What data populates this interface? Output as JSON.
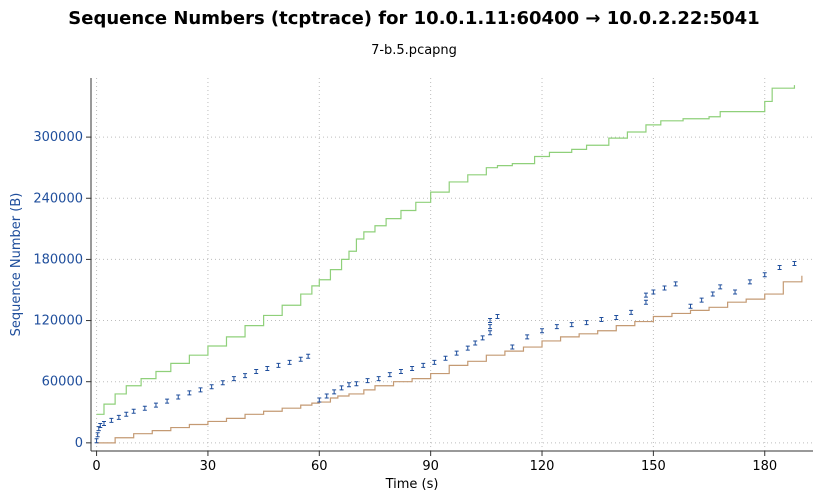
{
  "title": "Sequence Numbers (tcptrace) for 10.0.1.11:60400 → 10.0.2.22:5041",
  "subtitle": "7-b.5.pcapng",
  "colors": {
    "window": "#8fd07a",
    "ack": "#c49a73",
    "segments": "#1f4e9c",
    "grid": "#bdbdbd",
    "axis_text": "#1f4e9c"
  },
  "chart_data": {
    "type": "line",
    "title": "Sequence Numbers (tcptrace) for 10.0.1.11:60400 → 10.0.2.22:5041",
    "xlabel": "Time (s)",
    "ylabel": "Sequence Number (B)",
    "xlim": [
      -1.5,
      193
    ],
    "ylim": [
      -8000,
      358000
    ],
    "xticks": [
      0,
      30,
      60,
      90,
      120,
      150,
      180
    ],
    "yticks": [
      0,
      60000,
      120000,
      180000,
      240000,
      300000
    ],
    "xtick_labels": [
      "0",
      "30",
      "60",
      "90",
      "120",
      "150",
      "180"
    ],
    "ytick_labels": [
      "0",
      "60000",
      "120000",
      "180000",
      "240000",
      "300000"
    ],
    "grid": true,
    "series": [
      {
        "style": "step",
        "color": "#8fd07a",
        "x": [
          0,
          2,
          5,
          8,
          12,
          16,
          20,
          25,
          30,
          35,
          40,
          45,
          50,
          55,
          58,
          60,
          63,
          66,
          68,
          70,
          72,
          75,
          78,
          82,
          86,
          90,
          95,
          100,
          105,
          108,
          112,
          118,
          122,
          128,
          132,
          138,
          143,
          148,
          152,
          158,
          165,
          168,
          180,
          182,
          188
        ],
        "y": [
          28000,
          38000,
          48000,
          56000,
          63000,
          70000,
          78000,
          86000,
          95000,
          104000,
          115000,
          125000,
          135000,
          146000,
          154000,
          160000,
          170000,
          180000,
          188000,
          200000,
          207000,
          213000,
          220000,
          228000,
          236000,
          246000,
          256000,
          263000,
          270000,
          272000,
          274000,
          281000,
          285000,
          288000,
          292000,
          299000,
          305000,
          312000,
          316000,
          318000,
          320000,
          325000,
          335000,
          348000,
          351000
        ]
      },
      {
        "style": "step",
        "color": "#c49a73",
        "x": [
          0,
          5,
          10,
          15,
          20,
          25,
          30,
          35,
          40,
          45,
          50,
          55,
          58,
          60,
          63,
          65,
          68,
          72,
          75,
          80,
          85,
          90,
          95,
          100,
          105,
          110,
          115,
          120,
          125,
          130,
          135,
          140,
          145,
          150,
          155,
          160,
          165,
          170,
          175,
          180,
          185,
          190
        ],
        "y": [
          0,
          5000,
          9000,
          12000,
          15000,
          18000,
          21000,
          24000,
          28000,
          31000,
          34000,
          37000,
          39000,
          40000,
          44000,
          46000,
          48000,
          52000,
          56000,
          60000,
          63000,
          68000,
          76000,
          80000,
          86000,
          90000,
          94000,
          100000,
          104000,
          107000,
          110000,
          115000,
          119000,
          124000,
          127000,
          130000,
          133000,
          138000,
          141000,
          146000,
          158000,
          164000
        ]
      },
      {
        "style": "markers",
        "color": "#1f4e9c",
        "x": [
          0,
          0.3,
          0.6,
          1,
          2,
          4,
          6,
          8,
          10,
          13,
          16,
          19,
          22,
          25,
          28,
          31,
          34,
          37,
          40,
          43,
          46,
          49,
          52,
          55,
          57,
          60,
          62,
          64,
          66,
          68,
          70,
          73,
          76,
          79,
          82,
          85,
          88,
          91,
          94,
          97,
          100,
          102,
          104,
          106,
          106,
          106,
          108,
          112,
          116,
          120,
          124,
          128,
          132,
          136,
          140,
          144,
          148,
          148,
          150,
          153,
          156,
          160,
          163,
          166,
          168,
          172,
          176,
          180,
          184,
          188
        ],
        "y": [
          2000,
          8000,
          14000,
          17000,
          19000,
          22000,
          25000,
          28000,
          31000,
          34000,
          37000,
          41000,
          45000,
          49000,
          52000,
          55000,
          59000,
          63000,
          66000,
          70000,
          73000,
          76000,
          79000,
          82000,
          85000,
          42000,
          46000,
          50000,
          54000,
          57000,
          58000,
          61000,
          63000,
          67000,
          70000,
          73000,
          76000,
          79000,
          83000,
          88000,
          93000,
          98000,
          103000,
          108000,
          114000,
          120000,
          124000,
          94000,
          104000,
          110000,
          114000,
          116000,
          118000,
          121000,
          123000,
          128000,
          138000,
          145000,
          148000,
          152000,
          156000,
          134000,
          140000,
          146000,
          153000,
          148000,
          158000,
          165000,
          172000,
          176000
        ]
      }
    ]
  }
}
